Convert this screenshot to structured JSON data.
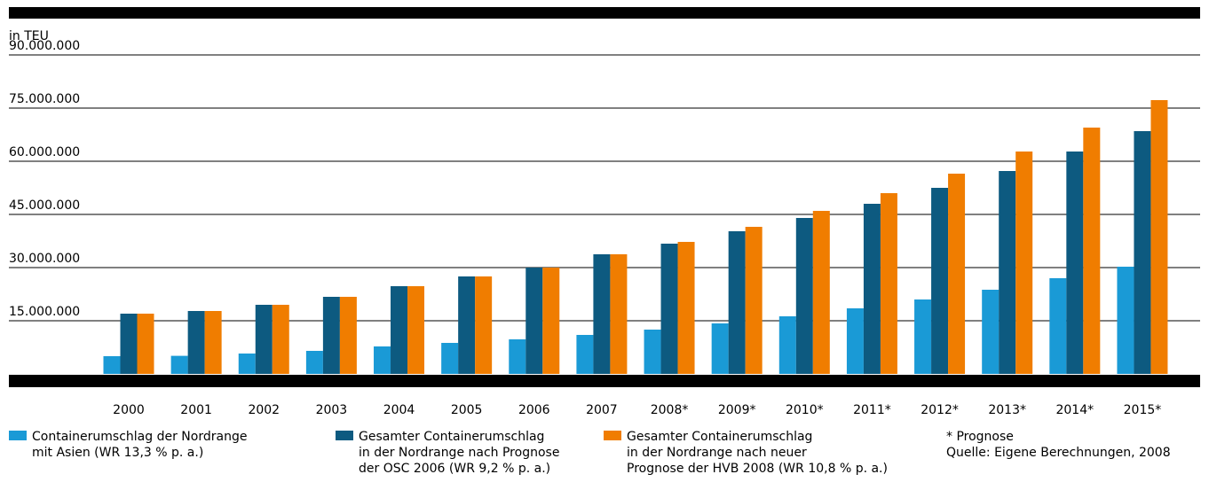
{
  "chart_data": {
    "type": "bar",
    "y_label": "in TEU",
    "categories": [
      "2000",
      "2001",
      "2002",
      "2003",
      "2004",
      "2005",
      "2006",
      "2007",
      "2008*",
      "2009*",
      "2010*",
      "2011*",
      "2012*",
      "2013*",
      "2014*",
      "2015*"
    ],
    "series": [
      {
        "name": "Containerumschlag der Nordrange\nmit Asien (WR 13,3 % p. a.)",
        "color": "#1a9ad6",
        "values": [
          5000000,
          5100000,
          5750000,
          6500000,
          7750000,
          8750000,
          9750000,
          11000000,
          12500000,
          14250000,
          16250000,
          18500000,
          21000000,
          23750000,
          27000000,
          30250000
        ]
      },
      {
        "name": "Gesamter Containerumschlag\nin der Nordrange nach Prognose\nder OSC 2006 (WR 9,2 % p. a.)",
        "color": "#0d5a80",
        "values": [
          17000000,
          17750000,
          19500000,
          21750000,
          24750000,
          27500000,
          30000000,
          33750000,
          36750000,
          40250000,
          44000000,
          48000000,
          52500000,
          57250000,
          62750000,
          68500000
        ]
      },
      {
        "name": "Gesamter Containerumschlag\nin der Nordrange nach neuer\nPrognose der HVB 2008 (WR 10,8 % p. a.)",
        "color": "#f07d00",
        "values": [
          17000000,
          17750000,
          19500000,
          21750000,
          24750000,
          27500000,
          30000000,
          33750000,
          37250000,
          41500000,
          46000000,
          51000000,
          56500000,
          62750000,
          69500000,
          77250000
        ]
      }
    ],
    "ylim": [
      0,
      90000000
    ],
    "yticks": [
      {
        "value": 15000000,
        "label": "15.000.000"
      },
      {
        "value": 30000000,
        "label": "30.000.000"
      },
      {
        "value": 45000000,
        "label": "45.000.000"
      },
      {
        "value": 60000000,
        "label": "60.000.000"
      },
      {
        "value": 75000000,
        "label": "75.000.000"
      },
      {
        "value": 90000000,
        "label": "90.000.000"
      }
    ],
    "grid": true,
    "footnote": "* Prognose",
    "source": "Quelle: Eigene Berechnungen, 2008"
  }
}
